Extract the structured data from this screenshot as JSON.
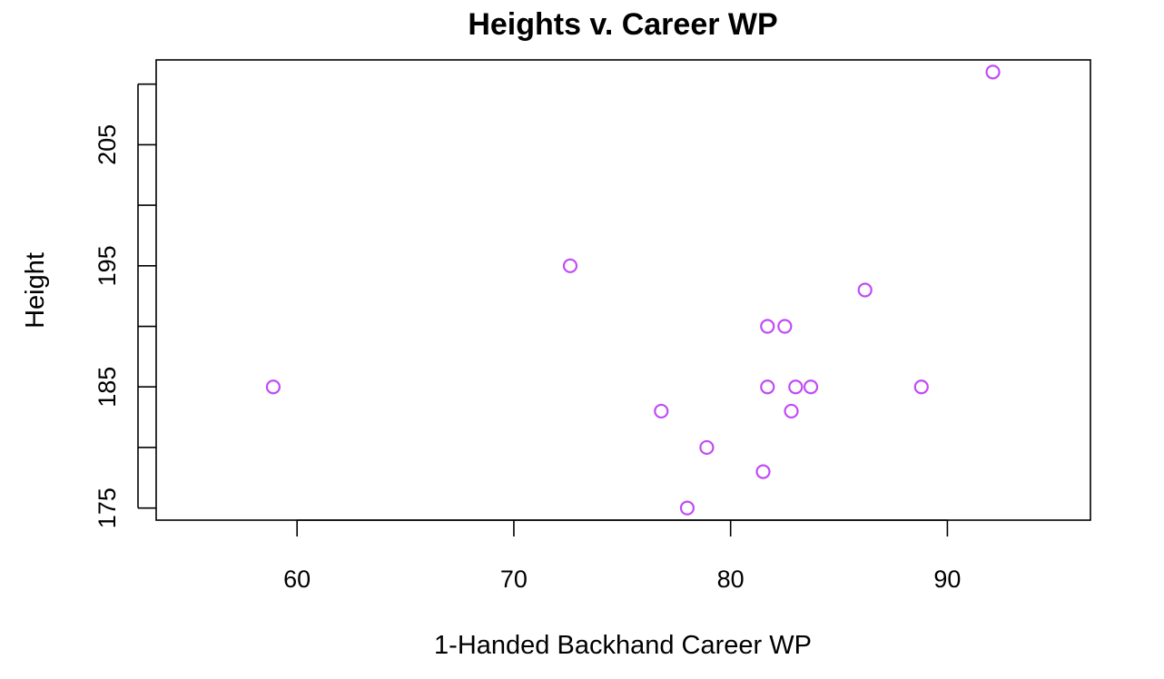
{
  "chart_data": {
    "type": "scatter",
    "title": "Heights v. Career WP",
    "xlabel": "1-Handed Backhand Career WP",
    "ylabel": "Height",
    "xlim": [
      53.5,
      96.6
    ],
    "ylim": [
      174,
      212
    ],
    "x_ticks": [
      60,
      70,
      80,
      90
    ],
    "y_ticks": [
      175,
      180,
      185,
      190,
      195,
      200,
      205,
      210
    ],
    "y_tick_labels": [
      "175",
      "",
      "185",
      "",
      "195",
      "",
      "205",
      ""
    ],
    "grid": false,
    "legend": "none",
    "marker_color": "#c24bf5",
    "points": [
      {
        "x": 58.9,
        "y": 185
      },
      {
        "x": 72.6,
        "y": 195
      },
      {
        "x": 76.8,
        "y": 183
      },
      {
        "x": 78.0,
        "y": 175
      },
      {
        "x": 78.9,
        "y": 180
      },
      {
        "x": 81.5,
        "y": 178
      },
      {
        "x": 81.7,
        "y": 190
      },
      {
        "x": 81.7,
        "y": 185
      },
      {
        "x": 82.5,
        "y": 190
      },
      {
        "x": 82.8,
        "y": 183
      },
      {
        "x": 83.0,
        "y": 185
      },
      {
        "x": 83.7,
        "y": 185
      },
      {
        "x": 86.2,
        "y": 193
      },
      {
        "x": 88.8,
        "y": 185
      },
      {
        "x": 92.1,
        "y": 211
      }
    ]
  }
}
